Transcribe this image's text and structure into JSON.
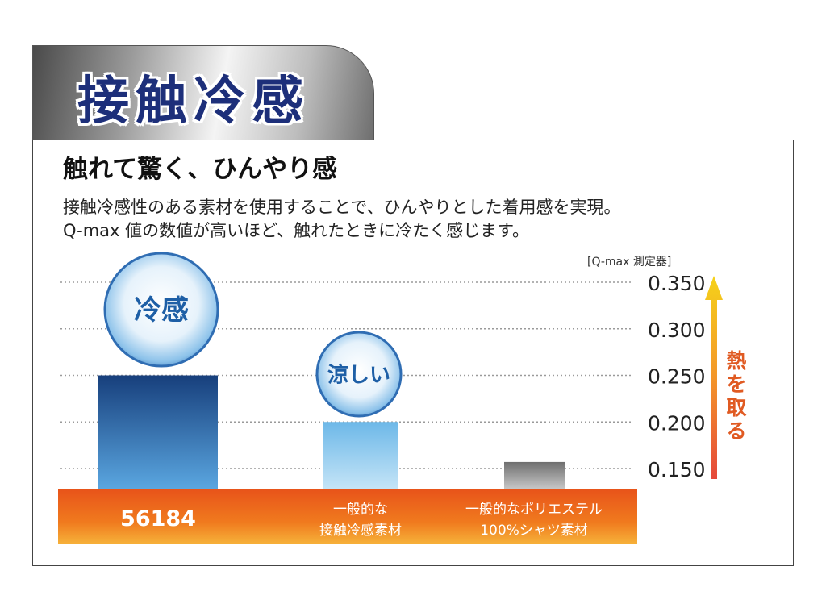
{
  "header": {
    "title": "接触冷感",
    "headline": "触れて驚く、ひんやり感",
    "description_lines": [
      "接触冷感性のある素材を使用することで、ひんやりとした着用感を実現。",
      "Q-max 値の数値が高いほど、触れたときに冷たく感じます。"
    ]
  },
  "chart_data": {
    "type": "bar",
    "unit_label": "[Q-max 測定器]",
    "categories": [
      [
        "56184"
      ],
      [
        "一般的な",
        "接触冷感素材"
      ],
      [
        "一般的なポリエステル",
        "100%シャツ素材"
      ]
    ],
    "values": [
      0.25,
      0.2,
      0.157
    ],
    "ylim": [
      0.125,
      0.35
    ],
    "yticks": [
      "0.350",
      "0.300",
      "0.250",
      "0.200",
      "0.150"
    ],
    "grid": true,
    "badges": [
      "冷感",
      "涼しい"
    ],
    "arrow_label": "熱を取る",
    "colors": {
      "bar1": "#1d4e8f",
      "bar2": "#7ec3ea",
      "bar3": "#8a8a8a",
      "base": "#ee5a1c",
      "arrow_top": "#f5d21a",
      "arrow_bottom": "#e5483a",
      "badge_text": "#1e5fa6"
    }
  }
}
